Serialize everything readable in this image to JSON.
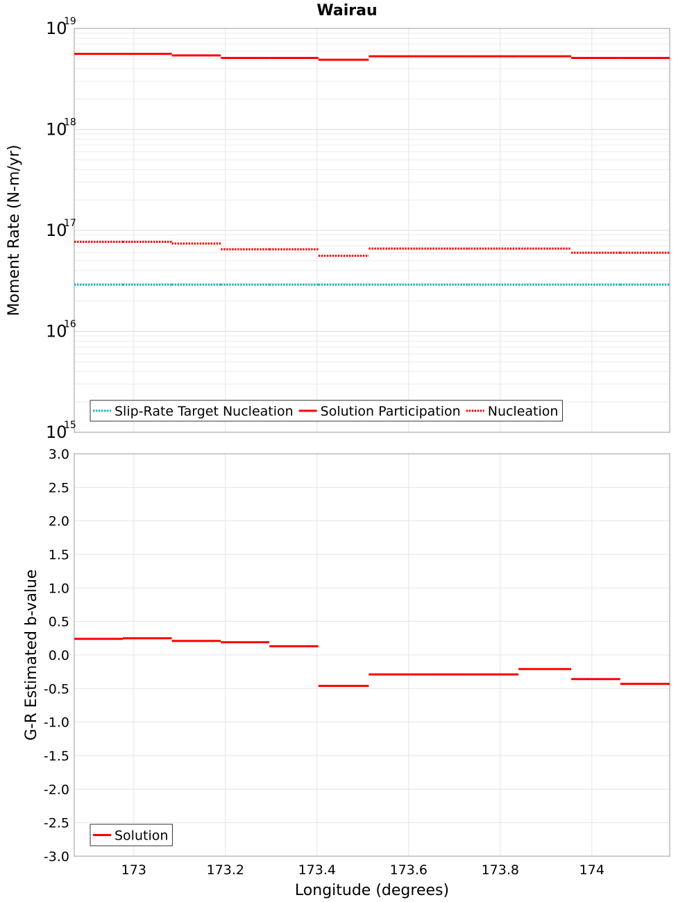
{
  "title": "Wairau",
  "x_axis": {
    "label": "Longitude (degrees)",
    "range": [
      172.87,
      174.17
    ],
    "ticks": [
      173,
      173.2,
      173.4,
      173.6,
      173.8,
      174
    ],
    "tick_labels": [
      "173",
      "173.2",
      "173.4",
      "173.6",
      "173.8",
      "174"
    ]
  },
  "chart_data": [
    {
      "type": "line",
      "name": "moment-rate",
      "title": "Wairau",
      "ylabel": "Moment Rate (N-m/yr)",
      "yscale": "log",
      "ylim": [
        1000000000000000.0,
        1e+19
      ],
      "ytick_values": [
        1000000000000000.0,
        1e+16,
        1e+17,
        1e+18,
        1e+19
      ],
      "ytick_base": "10",
      "ytick_exponents": [
        "15",
        "16",
        "17",
        "18",
        "19"
      ],
      "x_edges": [
        172.87,
        172.976,
        173.083,
        173.19,
        173.296,
        173.403,
        173.513,
        173.622,
        173.73,
        173.84,
        173.955,
        174.062,
        174.17
      ],
      "series": [
        {
          "name": "Slip-Rate Target Nucleation",
          "style": "dotted",
          "color": "#1ab2c0",
          "values": [
            2.9e+16,
            2.9e+16,
            2.9e+16,
            2.9e+16,
            2.9e+16,
            2.9e+16,
            2.9e+16,
            2.9e+16,
            2.9e+16,
            2.9e+16,
            2.9e+16,
            2.9e+16
          ]
        },
        {
          "name": "Solution Participation",
          "style": "solid",
          "color": "#ff0000",
          "values": [
            5.6e+18,
            5.6e+18,
            5.4e+18,
            5.1e+18,
            5.1e+18,
            4.9e+18,
            5.3e+18,
            5.3e+18,
            5.3e+18,
            5.3e+18,
            5.1e+18,
            5.1e+18
          ]
        },
        {
          "name": "Nucleation",
          "style": "dotted",
          "color": "#ff0000",
          "values": [
            7.7e+16,
            7.7e+16,
            7.4e+16,
            6.5e+16,
            6.5e+16,
            5.6e+16,
            6.6e+16,
            6.6e+16,
            6.6e+16,
            6.6e+16,
            6e+16,
            6e+16
          ]
        }
      ],
      "legend": {
        "position": "bottom-left",
        "entries": [
          "Slip-Rate Target Nucleation",
          "Solution Participation",
          "Nucleation"
        ]
      }
    },
    {
      "type": "line",
      "name": "b-value",
      "ylabel": "G-R Estimated b-value",
      "yscale": "linear",
      "ylim": [
        -3.0,
        3.0
      ],
      "yticks": [
        3.0,
        2.5,
        2.0,
        1.5,
        1.0,
        0.5,
        0.0,
        -0.5,
        -1.0,
        -1.5,
        -2.0,
        -2.5,
        -3.0
      ],
      "ytick_labels": [
        "3.0",
        "2.5",
        "2.0",
        "1.5",
        "1.0",
        "0.5",
        "0.0",
        "-0.5",
        "-1.0",
        "-1.5",
        "-2.0",
        "-2.5",
        "-3.0"
      ],
      "x_edges": [
        172.87,
        172.976,
        173.083,
        173.19,
        173.296,
        173.403,
        173.513,
        173.622,
        173.73,
        173.84,
        173.955,
        174.062,
        174.17
      ],
      "series": [
        {
          "name": "Solution",
          "style": "solid",
          "color": "#ff0000",
          "segments": [
            {
              "x0": 172.87,
              "x1": 172.976,
              "y": 0.24
            },
            {
              "x0": 172.976,
              "x1": 173.083,
              "y": 0.25
            },
            {
              "x0": 173.083,
              "x1": 173.19,
              "y": 0.21
            },
            {
              "x0": 173.19,
              "x1": 173.296,
              "y": 0.19
            },
            {
              "x0": 173.296,
              "x1": 173.403,
              "y": 0.13
            },
            {
              "x0": 173.403,
              "x1": 173.513,
              "y": -0.46
            },
            {
              "x0": 173.513,
              "x1": 173.622,
              "y": -0.29
            },
            {
              "x0": 173.622,
              "x1": 173.73,
              "y": -0.29
            },
            {
              "x0": 173.73,
              "x1": 173.84,
              "y": -0.29
            },
            {
              "x0": 173.84,
              "x1": 173.955,
              "y": -0.21
            },
            {
              "x0": 173.955,
              "x1": 174.062,
              "y": -0.36
            },
            {
              "x0": 174.062,
              "x1": 174.17,
              "y": -0.43
            }
          ]
        }
      ],
      "legend": {
        "position": "bottom-left",
        "entries": [
          "Solution"
        ]
      }
    }
  ]
}
